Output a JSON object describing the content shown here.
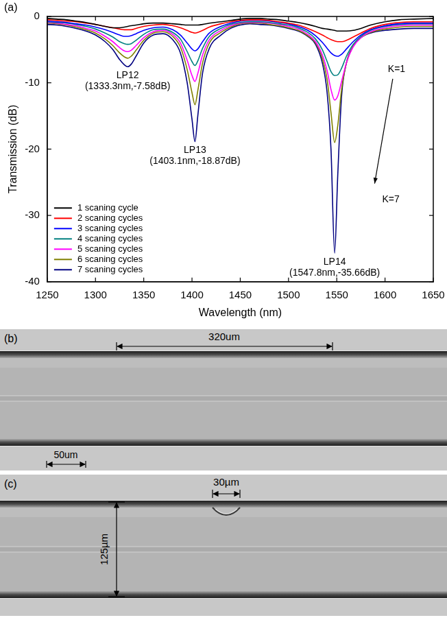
{
  "chart_data": {
    "type": "line",
    "panel_label": "(a)",
    "x_label": "Wavelength (nm)",
    "y_label": "Transmission (dB)",
    "xlim": [
      1250,
      1650
    ],
    "xticks": [
      1250,
      1300,
      1350,
      1400,
      1450,
      1500,
      1550,
      1600,
      1650
    ],
    "ylim": [
      -40,
      0
    ],
    "yticks": [
      -40,
      -30,
      -20,
      -10,
      0
    ],
    "grid": false,
    "legend": "lower left",
    "x": [
      1250,
      1260,
      1270,
      1280,
      1290,
      1300,
      1310,
      1318,
      1325,
      1330,
      1333.3,
      1337,
      1342,
      1350,
      1360,
      1370,
      1380,
      1388,
      1395,
      1400,
      1403.1,
      1406,
      1411,
      1418,
      1430,
      1440,
      1450,
      1460,
      1470,
      1480,
      1490,
      1500,
      1510,
      1520,
      1528,
      1535,
      1540,
      1544,
      1547.8,
      1551,
      1555,
      1560,
      1567,
      1575,
      1585,
      1600,
      1615,
      1630,
      1650
    ],
    "series": [
      {
        "name": "1 scaning cycle",
        "color": "#000000",
        "values": [
          -0.3,
          -0.4,
          -0.5,
          -0.7,
          -0.9,
          -1.2,
          -1.5,
          -1.7,
          -1.7,
          -1.6,
          -1.5,
          -1.4,
          -1.3,
          -1.1,
          -1.0,
          -1.0,
          -1.1,
          -1.2,
          -1.3,
          -1.3,
          -1.3,
          -1.3,
          -1.2,
          -1.0,
          -0.8,
          -0.6,
          -0.4,
          -0.3,
          -0.3,
          -0.4,
          -0.5,
          -0.7,
          -0.9,
          -1.2,
          -1.5,
          -1.8,
          -1.9,
          -2.0,
          -2.1,
          -2.2,
          -2.2,
          -2.2,
          -2.1,
          -1.8,
          -1.3,
          -0.8,
          -0.5,
          -0.4,
          -0.3
        ]
      },
      {
        "name": "2 scaning cycles",
        "color": "#ff0000",
        "values": [
          -0.5,
          -0.6,
          -0.7,
          -0.8,
          -1.0,
          -1.2,
          -1.5,
          -1.7,
          -1.9,
          -2.0,
          -2.0,
          -2.0,
          -1.8,
          -1.5,
          -1.3,
          -1.2,
          -1.4,
          -1.7,
          -2.1,
          -2.4,
          -2.5,
          -2.4,
          -2.1,
          -1.6,
          -1.1,
          -0.8,
          -0.6,
          -0.5,
          -0.5,
          -0.6,
          -0.8,
          -1.0,
          -1.3,
          -1.8,
          -2.3,
          -2.8,
          -3.2,
          -3.5,
          -3.7,
          -3.8,
          -3.8,
          -3.6,
          -3.1,
          -2.5,
          -1.8,
          -1.2,
          -0.9,
          -0.8,
          -0.8
        ]
      },
      {
        "name": "3 scaning cycles",
        "color": "#0000ff",
        "values": [
          -0.7,
          -0.8,
          -0.9,
          -1.1,
          -1.3,
          -1.6,
          -2.0,
          -2.4,
          -2.8,
          -3.0,
          -3.0,
          -2.9,
          -2.6,
          -2.1,
          -1.7,
          -1.6,
          -2.0,
          -2.8,
          -4.0,
          -4.9,
          -5.2,
          -4.9,
          -3.8,
          -2.5,
          -1.5,
          -1.0,
          -0.7,
          -0.6,
          -0.6,
          -0.7,
          -0.9,
          -1.1,
          -1.5,
          -2.1,
          -2.9,
          -3.9,
          -4.8,
          -5.5,
          -5.9,
          -6.0,
          -5.7,
          -4.9,
          -3.8,
          -2.8,
          -2.0,
          -1.4,
          -1.1,
          -1.0,
          -1.0
        ]
      },
      {
        "name": "4 scaning cycles",
        "color": "#008080",
        "values": [
          -0.8,
          -0.9,
          -1.0,
          -1.2,
          -1.5,
          -1.9,
          -2.5,
          -3.1,
          -3.8,
          -4.1,
          -4.2,
          -4.1,
          -3.6,
          -2.7,
          -2.0,
          -1.9,
          -2.4,
          -3.4,
          -5.3,
          -6.8,
          -7.4,
          -6.7,
          -4.8,
          -3.0,
          -1.8,
          -1.2,
          -0.9,
          -0.8,
          -0.8,
          -0.9,
          -1.1,
          -1.3,
          -1.7,
          -2.4,
          -3.4,
          -5.0,
          -6.8,
          -8.3,
          -8.9,
          -8.8,
          -7.8,
          -6.0,
          -4.2,
          -3.0,
          -2.1,
          -1.5,
          -1.2,
          -1.1,
          -1.1
        ]
      },
      {
        "name": "5 scaning cycles",
        "color": "#ff00ff",
        "values": [
          -0.9,
          -1.0,
          -1.2,
          -1.4,
          -1.8,
          -2.2,
          -3.0,
          -3.8,
          -4.7,
          -5.2,
          -5.3,
          -5.1,
          -4.4,
          -3.2,
          -2.3,
          -2.1,
          -2.7,
          -4.0,
          -6.6,
          -8.9,
          -9.8,
          -8.6,
          -5.8,
          -3.5,
          -2.1,
          -1.4,
          -1.0,
          -0.9,
          -0.9,
          -1.0,
          -1.2,
          -1.5,
          -1.9,
          -2.7,
          -3.8,
          -5.8,
          -8.2,
          -11.0,
          -12.6,
          -12.0,
          -9.8,
          -7.0,
          -4.6,
          -3.2,
          -2.3,
          -1.7,
          -1.4,
          -1.3,
          -1.3
        ]
      },
      {
        "name": "6 scaning cycles",
        "color": "#808000",
        "values": [
          -1.0,
          -1.1,
          -1.3,
          -1.6,
          -2.0,
          -2.5,
          -3.4,
          -4.4,
          -5.5,
          -6.1,
          -6.3,
          -6.0,
          -5.1,
          -3.6,
          -2.5,
          -2.3,
          -3.0,
          -4.6,
          -8.0,
          -11.5,
          -13.3,
          -11.2,
          -7.0,
          -4.0,
          -2.4,
          -1.6,
          -1.1,
          -1.0,
          -1.0,
          -1.2,
          -1.4,
          -1.7,
          -2.1,
          -2.9,
          -4.0,
          -6.3,
          -9.5,
          -14.5,
          -19.0,
          -16.5,
          -11.0,
          -7.0,
          -4.5,
          -3.2,
          -2.4,
          -1.9,
          -1.6,
          -1.5,
          -1.5
        ]
      },
      {
        "name": "7 scaning cycles",
        "color": "#000080",
        "values": [
          -1.2,
          -1.3,
          -1.5,
          -1.8,
          -2.2,
          -2.8,
          -3.8,
          -5.0,
          -6.5,
          -7.3,
          -7.58,
          -7.2,
          -6.0,
          -4.0,
          -2.8,
          -2.6,
          -3.5,
          -5.5,
          -10.0,
          -15.5,
          -18.87,
          -15.0,
          -8.5,
          -4.8,
          -2.8,
          -1.8,
          -1.3,
          -1.1,
          -1.2,
          -1.3,
          -1.5,
          -1.8,
          -2.2,
          -3.0,
          -4.2,
          -7.0,
          -11.5,
          -20.0,
          -35.66,
          -24.0,
          -12.0,
          -7.0,
          -4.5,
          -3.2,
          -2.5,
          -2.1,
          -1.9,
          -1.8,
          -1.8
        ]
      }
    ],
    "annotations": [
      {
        "text": "LP12",
        "detail": "(1333.3nm,-7.58dB)",
        "x": 1333.3,
        "y": -7.58
      },
      {
        "text": "LP13",
        "detail": "(1403.1nm,-18.87dB)",
        "x": 1403.1,
        "y": -18.87
      },
      {
        "text": "LP14",
        "detail": "(1547.8nm,-35.66dB)",
        "x": 1547.8,
        "y": -35.66
      }
    ],
    "trend_labels": {
      "start": "K=1",
      "end": "K=7"
    }
  },
  "micrographs": [
    {
      "label": "(b)",
      "dimensions": [
        {
          "text": "320um"
        },
        {
          "text": "50um"
        }
      ]
    },
    {
      "label": "(c)",
      "dimensions": [
        {
          "text": "30µm"
        },
        {
          "text": "125µm"
        }
      ]
    }
  ]
}
